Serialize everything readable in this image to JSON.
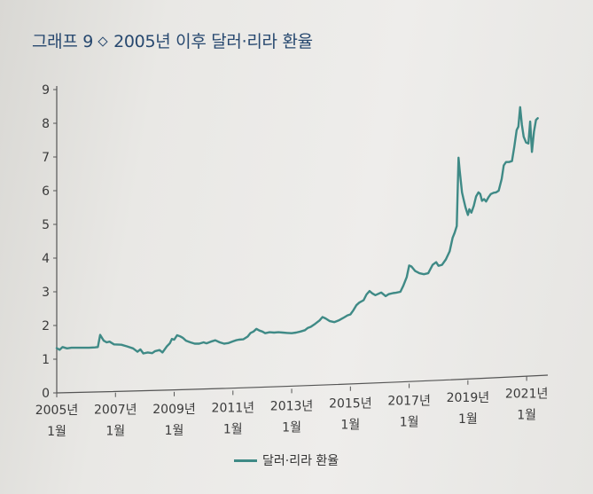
{
  "title": {
    "figure_number": "그래프 9",
    "text": "2005년 이후 달러·리라 환율"
  },
  "colors": {
    "series": "#3f8a86",
    "title": "#27486f",
    "axis": "#555555"
  },
  "chart_data": {
    "type": "line",
    "title": "2005년 이후 달러·리라 환율",
    "xlabel": "",
    "ylabel": "",
    "ylim": [
      0,
      9
    ],
    "xlim": [
      2005.0,
      2021.6
    ],
    "yticks": [
      0,
      1,
      2,
      3,
      4,
      5,
      6,
      7,
      8,
      9
    ],
    "xticks": [
      {
        "value": 2005,
        "year": "2005년",
        "month": "1월"
      },
      {
        "value": 2007,
        "year": "2007년",
        "month": "1월"
      },
      {
        "value": 2009,
        "year": "2009년",
        "month": "1월"
      },
      {
        "value": 2011,
        "year": "2011년",
        "month": "1월"
      },
      {
        "value": 2013,
        "year": "2013년",
        "month": "1월"
      },
      {
        "value": 2015,
        "year": "2015년",
        "month": "1월"
      },
      {
        "value": 2017,
        "year": "2017년",
        "month": "1월"
      },
      {
        "value": 2019,
        "year": "2019년",
        "month": "1월"
      },
      {
        "value": 2021,
        "year": "2021년",
        "month": "1월"
      }
    ],
    "grid": false,
    "legend_position": "bottom-center",
    "series": [
      {
        "name": "달러·리라 환율",
        "points": [
          [
            2005.0,
            1.33
          ],
          [
            2005.1,
            1.28
          ],
          [
            2005.2,
            1.36
          ],
          [
            2005.35,
            1.32
          ],
          [
            2005.5,
            1.34
          ],
          [
            2005.7,
            1.34
          ],
          [
            2005.9,
            1.34
          ],
          [
            2006.1,
            1.34
          ],
          [
            2006.3,
            1.35
          ],
          [
            2006.4,
            1.36
          ],
          [
            2006.48,
            1.72
          ],
          [
            2006.6,
            1.55
          ],
          [
            2006.7,
            1.5
          ],
          [
            2006.8,
            1.52
          ],
          [
            2006.95,
            1.44
          ],
          [
            2007.2,
            1.43
          ],
          [
            2007.4,
            1.38
          ],
          [
            2007.6,
            1.32
          ],
          [
            2007.75,
            1.22
          ],
          [
            2007.85,
            1.29
          ],
          [
            2007.95,
            1.17
          ],
          [
            2008.1,
            1.2
          ],
          [
            2008.25,
            1.18
          ],
          [
            2008.35,
            1.24
          ],
          [
            2008.5,
            1.27
          ],
          [
            2008.6,
            1.2
          ],
          [
            2008.75,
            1.38
          ],
          [
            2008.85,
            1.47
          ],
          [
            2008.92,
            1.6
          ],
          [
            2009.0,
            1.58
          ],
          [
            2009.1,
            1.71
          ],
          [
            2009.2,
            1.68
          ],
          [
            2009.3,
            1.63
          ],
          [
            2009.4,
            1.55
          ],
          [
            2009.55,
            1.5
          ],
          [
            2009.7,
            1.46
          ],
          [
            2009.85,
            1.46
          ],
          [
            2010.0,
            1.5
          ],
          [
            2010.1,
            1.47
          ],
          [
            2010.25,
            1.52
          ],
          [
            2010.4,
            1.56
          ],
          [
            2010.55,
            1.5
          ],
          [
            2010.7,
            1.46
          ],
          [
            2010.85,
            1.48
          ],
          [
            2011.0,
            1.53
          ],
          [
            2011.1,
            1.56
          ],
          [
            2011.2,
            1.58
          ],
          [
            2011.35,
            1.59
          ],
          [
            2011.5,
            1.67
          ],
          [
            2011.6,
            1.78
          ],
          [
            2011.7,
            1.82
          ],
          [
            2011.8,
            1.9
          ],
          [
            2011.9,
            1.85
          ],
          [
            2012.0,
            1.82
          ],
          [
            2012.1,
            1.77
          ],
          [
            2012.25,
            1.8
          ],
          [
            2012.4,
            1.79
          ],
          [
            2012.55,
            1.8
          ],
          [
            2012.7,
            1.79
          ],
          [
            2012.85,
            1.78
          ],
          [
            2013.0,
            1.77
          ],
          [
            2013.15,
            1.79
          ],
          [
            2013.3,
            1.82
          ],
          [
            2013.45,
            1.86
          ],
          [
            2013.55,
            1.93
          ],
          [
            2013.65,
            1.96
          ],
          [
            2013.8,
            2.05
          ],
          [
            2013.95,
            2.15
          ],
          [
            2014.05,
            2.25
          ],
          [
            2014.15,
            2.21
          ],
          [
            2014.3,
            2.13
          ],
          [
            2014.45,
            2.1
          ],
          [
            2014.6,
            2.15
          ],
          [
            2014.75,
            2.22
          ],
          [
            2014.9,
            2.3
          ],
          [
            2015.0,
            2.33
          ],
          [
            2015.1,
            2.45
          ],
          [
            2015.2,
            2.6
          ],
          [
            2015.3,
            2.68
          ],
          [
            2015.45,
            2.75
          ],
          [
            2015.55,
            2.92
          ],
          [
            2015.65,
            3.02
          ],
          [
            2015.75,
            2.95
          ],
          [
            2015.85,
            2.9
          ],
          [
            2015.95,
            2.94
          ],
          [
            2016.05,
            2.98
          ],
          [
            2016.2,
            2.87
          ],
          [
            2016.3,
            2.93
          ],
          [
            2016.45,
            2.96
          ],
          [
            2016.55,
            2.97
          ],
          [
            2016.7,
            3.0
          ],
          [
            2016.8,
            3.18
          ],
          [
            2016.92,
            3.44
          ],
          [
            2017.0,
            3.78
          ],
          [
            2017.08,
            3.75
          ],
          [
            2017.2,
            3.62
          ],
          [
            2017.35,
            3.55
          ],
          [
            2017.5,
            3.52
          ],
          [
            2017.65,
            3.55
          ],
          [
            2017.8,
            3.8
          ],
          [
            2017.92,
            3.88
          ],
          [
            2018.0,
            3.77
          ],
          [
            2018.12,
            3.8
          ],
          [
            2018.25,
            3.96
          ],
          [
            2018.38,
            4.2
          ],
          [
            2018.48,
            4.6
          ],
          [
            2018.55,
            4.75
          ],
          [
            2018.62,
            4.95
          ],
          [
            2018.68,
            6.98
          ],
          [
            2018.72,
            6.6
          ],
          [
            2018.8,
            5.95
          ],
          [
            2018.86,
            5.72
          ],
          [
            2018.92,
            5.5
          ],
          [
            2019.0,
            5.28
          ],
          [
            2019.05,
            5.45
          ],
          [
            2019.12,
            5.35
          ],
          [
            2019.2,
            5.55
          ],
          [
            2019.28,
            5.83
          ],
          [
            2019.36,
            5.95
          ],
          [
            2019.42,
            5.9
          ],
          [
            2019.48,
            5.7
          ],
          [
            2019.55,
            5.75
          ],
          [
            2019.62,
            5.68
          ],
          [
            2019.7,
            5.8
          ],
          [
            2019.78,
            5.9
          ],
          [
            2019.88,
            5.94
          ],
          [
            2019.96,
            5.95
          ],
          [
            2020.05,
            6.0
          ],
          [
            2020.15,
            6.35
          ],
          [
            2020.22,
            6.75
          ],
          [
            2020.3,
            6.85
          ],
          [
            2020.4,
            6.85
          ],
          [
            2020.5,
            6.88
          ],
          [
            2020.58,
            7.3
          ],
          [
            2020.66,
            7.8
          ],
          [
            2020.72,
            7.9
          ],
          [
            2020.78,
            8.48
          ],
          [
            2020.84,
            7.95
          ],
          [
            2020.9,
            7.6
          ],
          [
            2020.98,
            7.43
          ],
          [
            2021.06,
            7.4
          ],
          [
            2021.12,
            8.05
          ],
          [
            2021.18,
            7.15
          ],
          [
            2021.25,
            7.75
          ],
          [
            2021.32,
            8.1
          ],
          [
            2021.38,
            8.15
          ]
        ]
      }
    ]
  }
}
